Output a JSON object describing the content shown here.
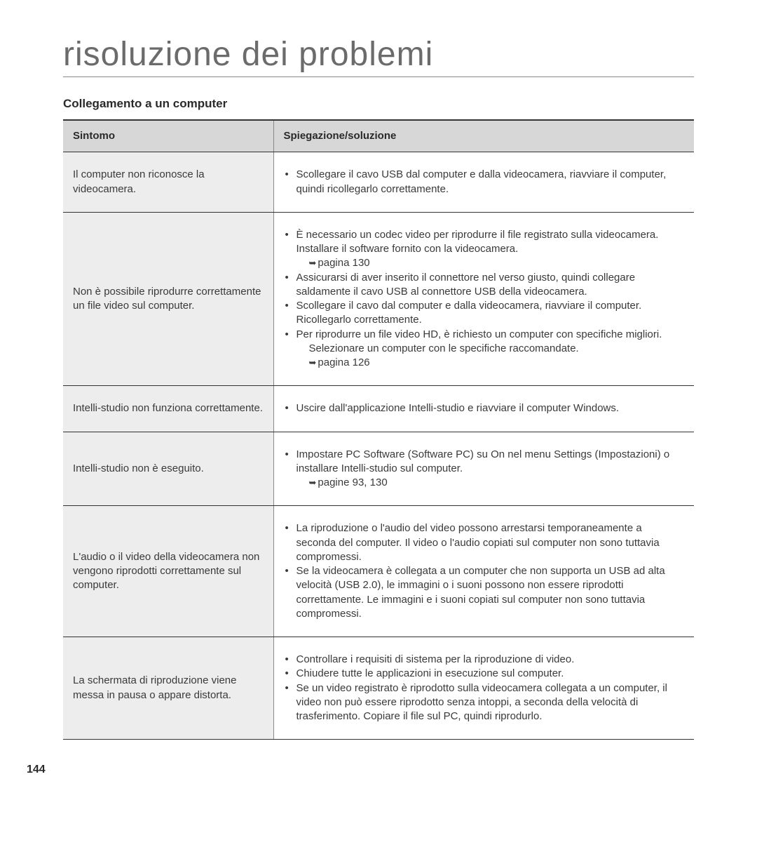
{
  "title": "risoluzione dei problemi",
  "section": "Collegamento a un computer",
  "pageNumber": "144",
  "colors": {
    "background": "#ffffff",
    "headerBg": "#d7d7d7",
    "symptomBg": "#ededed",
    "text": "#3a3a3a",
    "titleText": "#6b6b6b",
    "borderDark": "#333333",
    "borderLight": "#888888"
  },
  "columns": {
    "symptom": "Sintomo",
    "solution": "Spiegazione/soluzione"
  },
  "rows": [
    {
      "symptom": "Il computer non riconosce la videocamera.",
      "items": [
        {
          "text": "Scollegare il cavo USB dal computer e dalla videocamera, riavviare il computer, quindi ricollegarlo correttamente."
        }
      ]
    },
    {
      "symptom": "Non è possibile riprodurre correttamente un file video sul computer.",
      "items": [
        {
          "text": "È necessario un codec video per riprodurre il file registrato sulla videocamera. Installare il software fornito con la videocamera.",
          "ref": "pagina 130"
        },
        {
          "text": "Assicurarsi di aver inserito il connettore nel verso giusto, quindi collegare saldamente il cavo USB al connettore USB della videocamera."
        },
        {
          "text": "Scollegare il cavo dal computer e dalla videocamera, riavviare il computer. Ricollegarlo correttamente."
        },
        {
          "text": "Per riprodurre un file video HD, è richiesto un computer con specifiche migliori.",
          "extra": "Selezionare un computer con le specifiche raccomandate.",
          "ref": "pagina 126"
        }
      ]
    },
    {
      "symptom": "Intelli-studio non funziona correttamente.",
      "items": [
        {
          "text": "Uscire dall'applicazione Intelli-studio e riavviare il computer Windows."
        }
      ]
    },
    {
      "symptom": "Intelli-studio non è eseguito.",
      "items": [
        {
          "text": "Impostare PC Software (Software PC) su On nel menu Settings (Impostazioni) o installare Intelli-studio sul computer.",
          "ref": "pagine 93, 130"
        }
      ]
    },
    {
      "symptom": "L'audio o il video della videocamera non vengono riprodotti correttamente sul computer.",
      "items": [
        {
          "text": "La riproduzione o l'audio del video possono arrestarsi temporaneamente a seconda del computer. Il video o l'audio copiati sul computer non sono tuttavia compromessi."
        },
        {
          "text": "Se la videocamera è collegata a un computer che non supporta un USB ad alta velocità (USB 2.0), le immagini o i suoni possono non essere riprodotti correttamente. Le immagini e i suoni copiati sul computer non sono tuttavia compromessi."
        }
      ]
    },
    {
      "symptom": "La schermata di riproduzione viene messa in pausa o appare distorta.",
      "items": [
        {
          "text": "Controllare i requisiti di sistema per la riproduzione di video."
        },
        {
          "text": "Chiudere tutte le applicazioni in esecuzione sul computer."
        },
        {
          "text": "Se un video registrato è riprodotto sulla videocamera collegata a un computer, il video non può essere riprodotto senza intoppi, a seconda della velocità di trasferimento. Copiare il file sul PC, quindi riprodurlo."
        }
      ]
    }
  ]
}
